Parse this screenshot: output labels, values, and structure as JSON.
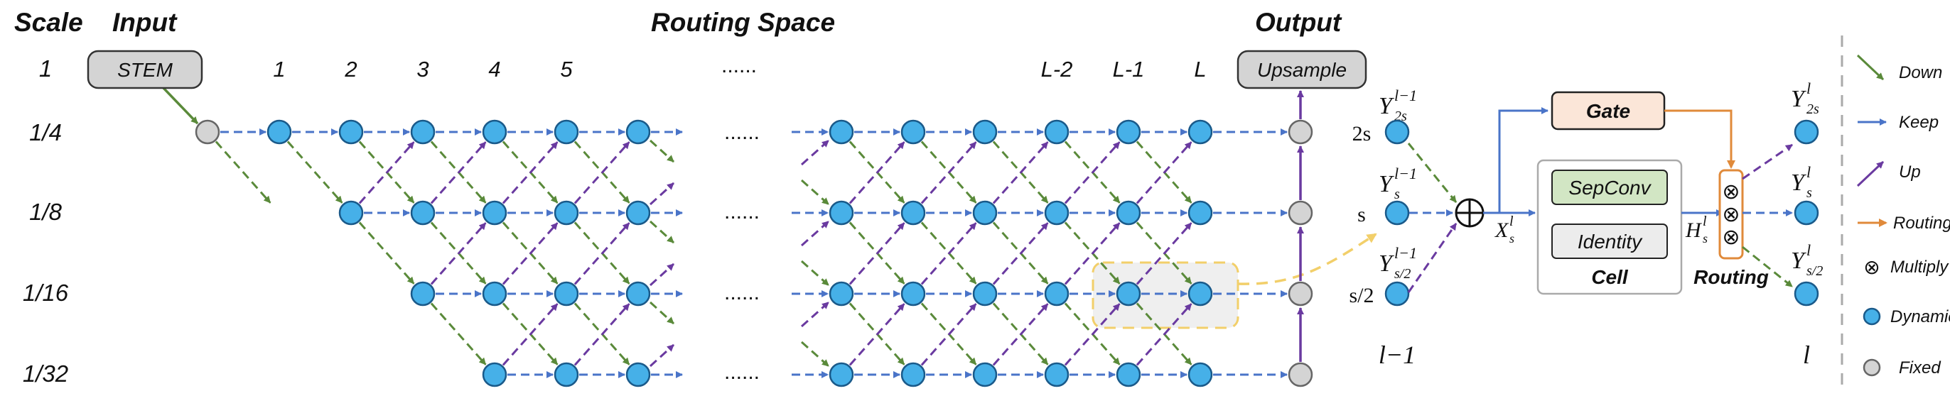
{
  "headers": {
    "scale": "Scale",
    "input": "Input",
    "routing_space": "Routing Space",
    "output": "Output"
  },
  "scales": [
    "1",
    "1/4",
    "1/8",
    "1/16",
    "1/32"
  ],
  "layer_indices_left": [
    "1",
    "2",
    "3",
    "4",
    "5"
  ],
  "layer_indices_right": [
    "L-2",
    "L-1",
    "L"
  ],
  "ellipsis": "......",
  "stem_label": "STEM",
  "upsample_label": "Upsample",
  "detail": {
    "scale_2s": "2s",
    "scale_s": "s",
    "scale_s_half": "s/2",
    "prev_layer": "l−1",
    "cur_layer": "l",
    "y_prev_2s": "Y",
    "y_prev_2s_sub": "2s",
    "y_prev_2s_sup": "l−1",
    "y_prev_s": "Y",
    "y_prev_s_sub": "s",
    "y_prev_s_sup": "l−1",
    "y_prev_half": "Y",
    "y_prev_half_sub": "s/2",
    "y_prev_half_sup": "l−1",
    "x_label": "X",
    "x_sub": "s",
    "x_sup": "l",
    "h_label": "H",
    "h_sub": "s",
    "h_sup": "l",
    "y_out_2s": "Y",
    "y_out_2s_sub": "2s",
    "y_out_2s_sup": "l",
    "y_out_s": "Y",
    "y_out_s_sub": "s",
    "y_out_s_sup": "l",
    "y_out_half": "Y",
    "y_out_half_sub": "s/2",
    "y_out_half_sup": "l",
    "gate": "Gate",
    "sepconv": "SepConv",
    "identity": "Identity",
    "cell": "Cell",
    "routing": "Routing",
    "plus_symbol": "+",
    "multiply_symbol": "⊗"
  },
  "legend": {
    "down": "Down",
    "keep": "Keep",
    "up": "Up",
    "routing": "Routing",
    "multiply": "Multiply",
    "dynamic": "Dynamic",
    "fixed": "Fixed",
    "multiply_symbol": "⊗"
  },
  "colors": {
    "down": "#5a8a3a",
    "keep": "#4a74c8",
    "up": "#6a3aa0",
    "routing": "#e08a3a",
    "dynamic_fill": "#46b0e8",
    "dynamic_stroke": "#1a5a8a",
    "fixed_fill": "#d4d4d4",
    "fixed_stroke": "#666666",
    "gate_fill": "#fbe6d8",
    "sepconv_fill": "#d2e6c4",
    "identity_fill": "#ececec",
    "highlight": "#f2cf6a"
  }
}
